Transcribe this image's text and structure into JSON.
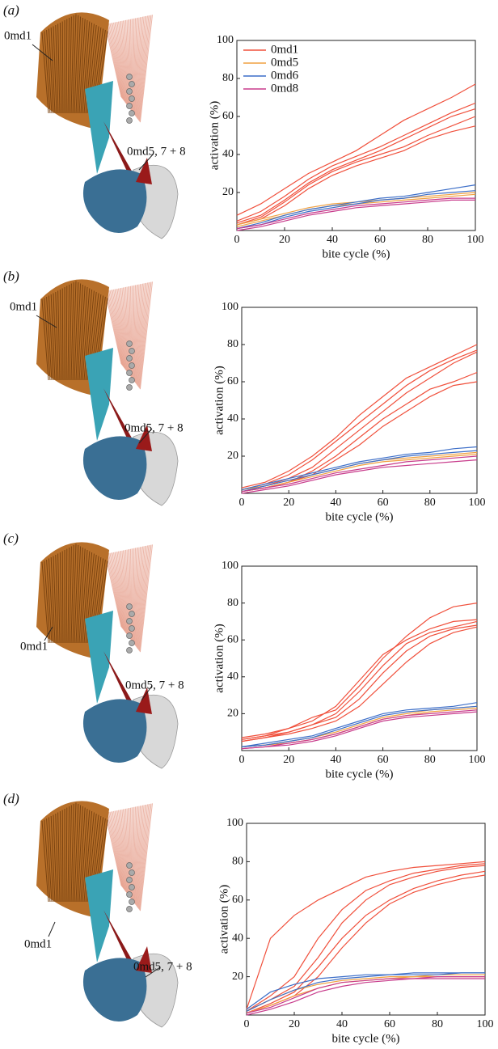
{
  "chart_data": [
    {
      "type": "line",
      "panel": "(a)",
      "annotations": [
        "0md1",
        "0md5, 7 + 8"
      ],
      "xlabel": "bite cycle (%)",
      "ylabel": "activation (%)",
      "x": [
        0,
        10,
        20,
        30,
        40,
        50,
        60,
        70,
        80,
        90,
        100
      ],
      "xlim": [
        0,
        100
      ],
      "ylim": [
        0,
        100
      ],
      "xticks": [
        0,
        20,
        40,
        60,
        80,
        100
      ],
      "yticks": [
        20,
        40,
        60,
        80,
        100
      ],
      "legend": "upper left",
      "series": [
        {
          "name": "0md1",
          "color": "#f0503c",
          "values": [
            [
              8,
              14,
              22,
              30,
              36,
              42,
              50,
              58,
              64,
              70,
              77
            ],
            [
              5,
              10,
              18,
              27,
              34,
              39,
              44,
              50,
              56,
              62,
              67
            ],
            [
              4,
              8,
              16,
              25,
              32,
              37,
              42,
              48,
              54,
              60,
              64
            ],
            [
              3,
              7,
              15,
              24,
              31,
              36,
              40,
              44,
              50,
              55,
              60
            ],
            [
              3,
              6,
              13,
              22,
              29,
              34,
              38,
              42,
              48,
              52,
              55
            ]
          ]
        },
        {
          "name": "0md5",
          "color": "#f0a040",
          "values": [
            [
              2,
              5,
              8,
              11,
              13,
              14,
              15,
              16,
              17,
              18,
              19
            ],
            [
              3,
              6,
              9,
              12,
              14,
              15,
              16,
              17,
              18,
              19,
              20
            ]
          ]
        },
        {
          "name": "0md6",
          "color": "#3c6ec8",
          "values": [
            [
              1,
              4,
              8,
              11,
              13,
              15,
              17,
              18,
              20,
              22,
              24
            ],
            [
              1,
              3,
              7,
              10,
              12,
              14,
              16,
              17,
              19,
              20,
              21
            ]
          ]
        },
        {
          "name": "0md8",
          "color": "#c83c8c",
          "values": [
            [
              1,
              3,
              6,
              9,
              11,
              13,
              14,
              15,
              16,
              17,
              17
            ],
            [
              0,
              2,
              5,
              8,
              10,
              12,
              13,
              14,
              15,
              16,
              16
            ]
          ]
        }
      ]
    },
    {
      "type": "line",
      "panel": "(b)",
      "annotations": [
        "0md1",
        "0md5, 7 + 8"
      ],
      "xlabel": "bite cycle (%)",
      "ylabel": "activation (%)",
      "x": [
        0,
        10,
        20,
        30,
        40,
        50,
        60,
        70,
        80,
        90,
        100
      ],
      "xlim": [
        0,
        100
      ],
      "ylim": [
        0,
        100
      ],
      "xticks": [
        0,
        20,
        40,
        60,
        80,
        100
      ],
      "yticks": [
        20,
        40,
        60,
        80,
        100
      ],
      "series": [
        {
          "color": "#f0503c",
          "values": [
            [
              3,
              6,
              12,
              20,
              30,
              42,
              52,
              62,
              68,
              74,
              80
            ],
            [
              2,
              5,
              10,
              18,
              28,
              38,
              48,
              58,
              66,
              72,
              77
            ],
            [
              2,
              4,
              8,
              14,
              24,
              34,
              44,
              54,
              62,
              70,
              76
            ],
            [
              1,
              3,
              6,
              12,
              20,
              30,
              40,
              48,
              56,
              60,
              65
            ],
            [
              1,
              3,
              6,
              10,
              18,
              26,
              36,
              44,
              52,
              58,
              60
            ]
          ]
        },
        {
          "color": "#f0a040",
          "values": [
            [
              2,
              4,
              7,
              10,
              13,
              16,
              18,
              19,
              20,
              21,
              22
            ],
            [
              1,
              3,
              6,
              9,
              12,
              15,
              17,
              18,
              19,
              20,
              21
            ]
          ]
        },
        {
          "color": "#3c6ec8",
          "values": [
            [
              2,
              5,
              8,
              11,
              14,
              17,
              19,
              21,
              22,
              24,
              25
            ],
            [
              1,
              4,
              7,
              10,
              13,
              16,
              18,
              20,
              21,
              22,
              23
            ]
          ]
        },
        {
          "color": "#c83c8c",
          "values": [
            [
              1,
              3,
              5,
              8,
              11,
              13,
              15,
              17,
              18,
              19,
              20
            ],
            [
              0,
              2,
              4,
              7,
              10,
              12,
              14,
              15,
              16,
              17,
              18
            ]
          ]
        }
      ]
    },
    {
      "type": "line",
      "panel": "(c)",
      "annotations": [
        "0md1",
        "0md5, 7 + 8"
      ],
      "xlabel": "bite cycle (%)",
      "ylabel": "activation (%)",
      "x": [
        0,
        10,
        20,
        30,
        40,
        50,
        60,
        70,
        80,
        90,
        100
      ],
      "xlim": [
        0,
        100
      ],
      "ylim": [
        0,
        100
      ],
      "xticks": [
        0,
        20,
        40,
        60,
        80,
        100
      ],
      "yticks": [
        20,
        40,
        60,
        80,
        100
      ],
      "series": [
        {
          "color": "#f0503c",
          "values": [
            [
              7,
              9,
              12,
              18,
              22,
              35,
              50,
              62,
              72,
              78,
              80
            ],
            [
              6,
              8,
              12,
              16,
              24,
              38,
              52,
              60,
              66,
              70,
              71
            ],
            [
              6,
              8,
              10,
              14,
              20,
              32,
              46,
              58,
              64,
              67,
              70
            ],
            [
              5,
              7,
              10,
              14,
              18,
              28,
              42,
              54,
              62,
              66,
              68
            ],
            [
              5,
              7,
              9,
              12,
              16,
              24,
              36,
              48,
              58,
              64,
              67
            ]
          ]
        },
        {
          "color": "#f0a040",
          "values": [
            [
              2,
              3,
              5,
              7,
              10,
              14,
              18,
              20,
              22,
              23,
              24
            ],
            [
              2,
              3,
              4,
              6,
              9,
              13,
              17,
              19,
              21,
              22,
              23
            ]
          ]
        },
        {
          "color": "#3c6ec8",
          "values": [
            [
              2,
              4,
              6,
              8,
              12,
              16,
              20,
              22,
              23,
              24,
              26
            ],
            [
              2,
              3,
              5,
              7,
              11,
              15,
              19,
              21,
              22,
              23,
              24
            ]
          ]
        },
        {
          "color": "#c83c8c",
          "values": [
            [
              1,
              2,
              4,
              6,
              9,
              13,
              17,
              19,
              20,
              21,
              22
            ],
            [
              1,
              2,
              3,
              5,
              8,
              12,
              16,
              18,
              19,
              20,
              21
            ]
          ]
        }
      ]
    },
    {
      "type": "line",
      "panel": "(d)",
      "annotations": [
        "0md1",
        "0md5, 7 + 8"
      ],
      "xlabel": "bite cycle (%)",
      "ylabel": "activation (%)",
      "x": [
        0,
        10,
        20,
        30,
        40,
        50,
        60,
        70,
        80,
        90,
        100
      ],
      "xlim": [
        0,
        100
      ],
      "ylim": [
        0,
        100
      ],
      "xticks": [
        0,
        20,
        40,
        60,
        80,
        100
      ],
      "yticks": [
        20,
        40,
        60,
        80,
        100
      ],
      "series": [
        {
          "color": "#f0503c",
          "values": [
            [
              3,
              40,
              52,
              60,
              66,
              72,
              75,
              77,
              78,
              79,
              80
            ],
            [
              2,
              10,
              20,
              40,
              55,
              65,
              70,
              74,
              76,
              78,
              79
            ],
            [
              2,
              8,
              15,
              30,
              48,
              60,
              68,
              72,
              75,
              77,
              78
            ],
            [
              1,
              6,
              12,
              25,
              40,
              52,
              60,
              66,
              70,
              73,
              75
            ],
            [
              1,
              5,
              10,
              20,
              35,
              48,
              58,
              64,
              68,
              71,
              73
            ]
          ]
        },
        {
          "color": "#f0a040",
          "values": [
            [
              2,
              8,
              13,
              16,
              18,
              19,
              20,
              20,
              21,
              21,
              21
            ],
            [
              1,
              5,
              10,
              14,
              17,
              18,
              19,
              20,
              20,
              20,
              20
            ]
          ]
        },
        {
          "color": "#3c6ec8",
          "values": [
            [
              3,
              12,
              16,
              19,
              20,
              21,
              21,
              22,
              22,
              22,
              22
            ],
            [
              2,
              8,
              13,
              17,
              19,
              20,
              21,
              21,
              21,
              22,
              22
            ]
          ]
        },
        {
          "color": "#c83c8c",
          "values": [
            [
              1,
              4,
              9,
              14,
              17,
              18,
              19,
              19,
              20,
              20,
              20
            ],
            [
              0,
              3,
              7,
              12,
              15,
              17,
              18,
              19,
              19,
              19,
              19
            ]
          ]
        }
      ]
    }
  ]
}
